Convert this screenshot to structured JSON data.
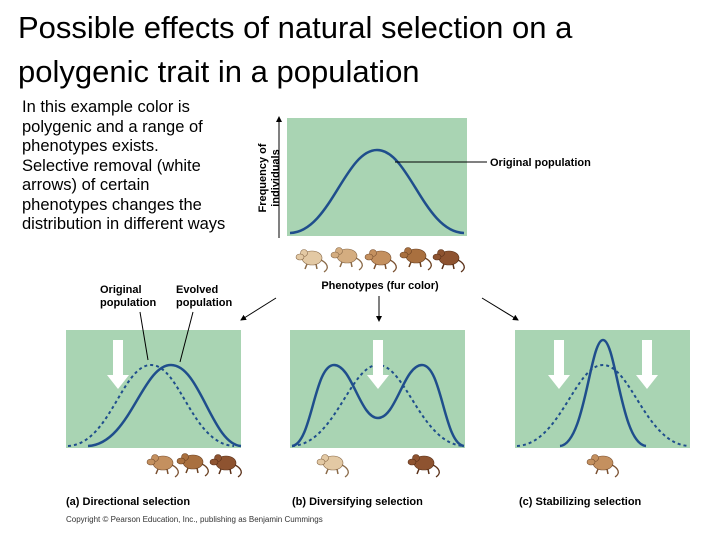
{
  "title": "Possible effects of natural selection on a polygenic trait in a population",
  "intro_lines": [
    "In this example color is",
    "polygenic and a range of",
    "phenotypes exists.",
    "Selective removal (white",
    "arrows) of certain",
    "phenotypes changes the",
    "distribution in different ways"
  ],
  "y_axis_label": [
    "Frequency of",
    "individuals"
  ],
  "x_axis_label": "Phenotypes (fur color)",
  "original_population_label": "Original population",
  "directional_labels": {
    "original": [
      "Original",
      "population"
    ],
    "evolved": [
      "Evolved",
      "population"
    ]
  },
  "panels": [
    {
      "letter": "(a)",
      "name": "Directional selection"
    },
    {
      "letter": "(b)",
      "name": "Diversifying selection"
    },
    {
      "letter": "(c)",
      "name": "Stabilizing selection"
    }
  ],
  "copyright": "Copyright © Pearson Education, Inc., publishing as Benjamin Cummings",
  "colors": {
    "panel_green": "#a9d4b3",
    "curve_blue": "#1f4e8c",
    "arrow_white": "#ffffff",
    "mouse_light": "#e3c9a4",
    "mouse_dark": "#8e5330"
  }
}
